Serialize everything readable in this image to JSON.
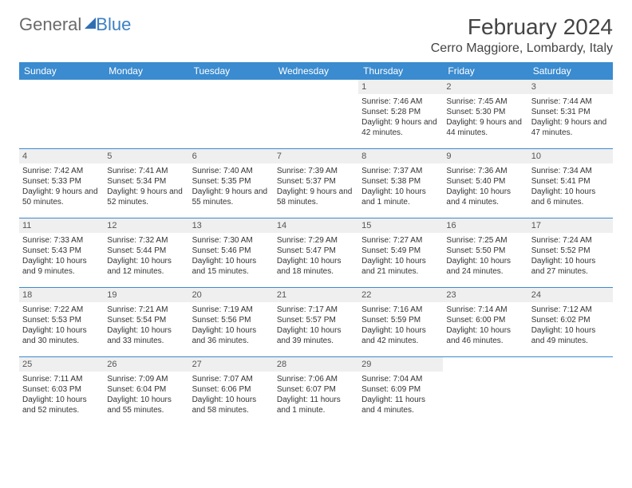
{
  "logo": {
    "part1": "General",
    "part2": "Blue"
  },
  "title": "February 2024",
  "location": "Cerro Maggiore, Lombardy, Italy",
  "colors": {
    "header_bg": "#3a8bcf",
    "header_text": "#ffffff",
    "daynum_bg": "#efefef",
    "rule": "#3a8bcf",
    "logo_blue": "#3a7fc4",
    "logo_gray": "#6a6a6a"
  },
  "daysOfWeek": [
    "Sunday",
    "Monday",
    "Tuesday",
    "Wednesday",
    "Thursday",
    "Friday",
    "Saturday"
  ],
  "weeks": [
    [
      null,
      null,
      null,
      null,
      {
        "n": "1",
        "sr": "7:46 AM",
        "ss": "5:28 PM",
        "dl": "9 hours and 42 minutes."
      },
      {
        "n": "2",
        "sr": "7:45 AM",
        "ss": "5:30 PM",
        "dl": "9 hours and 44 minutes."
      },
      {
        "n": "3",
        "sr": "7:44 AM",
        "ss": "5:31 PM",
        "dl": "9 hours and 47 minutes."
      }
    ],
    [
      {
        "n": "4",
        "sr": "7:42 AM",
        "ss": "5:33 PM",
        "dl": "9 hours and 50 minutes."
      },
      {
        "n": "5",
        "sr": "7:41 AM",
        "ss": "5:34 PM",
        "dl": "9 hours and 52 minutes."
      },
      {
        "n": "6",
        "sr": "7:40 AM",
        "ss": "5:35 PM",
        "dl": "9 hours and 55 minutes."
      },
      {
        "n": "7",
        "sr": "7:39 AM",
        "ss": "5:37 PM",
        "dl": "9 hours and 58 minutes."
      },
      {
        "n": "8",
        "sr": "7:37 AM",
        "ss": "5:38 PM",
        "dl": "10 hours and 1 minute."
      },
      {
        "n": "9",
        "sr": "7:36 AM",
        "ss": "5:40 PM",
        "dl": "10 hours and 4 minutes."
      },
      {
        "n": "10",
        "sr": "7:34 AM",
        "ss": "5:41 PM",
        "dl": "10 hours and 6 minutes."
      }
    ],
    [
      {
        "n": "11",
        "sr": "7:33 AM",
        "ss": "5:43 PM",
        "dl": "10 hours and 9 minutes."
      },
      {
        "n": "12",
        "sr": "7:32 AM",
        "ss": "5:44 PM",
        "dl": "10 hours and 12 minutes."
      },
      {
        "n": "13",
        "sr": "7:30 AM",
        "ss": "5:46 PM",
        "dl": "10 hours and 15 minutes."
      },
      {
        "n": "14",
        "sr": "7:29 AM",
        "ss": "5:47 PM",
        "dl": "10 hours and 18 minutes."
      },
      {
        "n": "15",
        "sr": "7:27 AM",
        "ss": "5:49 PM",
        "dl": "10 hours and 21 minutes."
      },
      {
        "n": "16",
        "sr": "7:25 AM",
        "ss": "5:50 PM",
        "dl": "10 hours and 24 minutes."
      },
      {
        "n": "17",
        "sr": "7:24 AM",
        "ss": "5:52 PM",
        "dl": "10 hours and 27 minutes."
      }
    ],
    [
      {
        "n": "18",
        "sr": "7:22 AM",
        "ss": "5:53 PM",
        "dl": "10 hours and 30 minutes."
      },
      {
        "n": "19",
        "sr": "7:21 AM",
        "ss": "5:54 PM",
        "dl": "10 hours and 33 minutes."
      },
      {
        "n": "20",
        "sr": "7:19 AM",
        "ss": "5:56 PM",
        "dl": "10 hours and 36 minutes."
      },
      {
        "n": "21",
        "sr": "7:17 AM",
        "ss": "5:57 PM",
        "dl": "10 hours and 39 minutes."
      },
      {
        "n": "22",
        "sr": "7:16 AM",
        "ss": "5:59 PM",
        "dl": "10 hours and 42 minutes."
      },
      {
        "n": "23",
        "sr": "7:14 AM",
        "ss": "6:00 PM",
        "dl": "10 hours and 46 minutes."
      },
      {
        "n": "24",
        "sr": "7:12 AM",
        "ss": "6:02 PM",
        "dl": "10 hours and 49 minutes."
      }
    ],
    [
      {
        "n": "25",
        "sr": "7:11 AM",
        "ss": "6:03 PM",
        "dl": "10 hours and 52 minutes."
      },
      {
        "n": "26",
        "sr": "7:09 AM",
        "ss": "6:04 PM",
        "dl": "10 hours and 55 minutes."
      },
      {
        "n": "27",
        "sr": "7:07 AM",
        "ss": "6:06 PM",
        "dl": "10 hours and 58 minutes."
      },
      {
        "n": "28",
        "sr": "7:06 AM",
        "ss": "6:07 PM",
        "dl": "11 hours and 1 minute."
      },
      {
        "n": "29",
        "sr": "7:04 AM",
        "ss": "6:09 PM",
        "dl": "11 hours and 4 minutes."
      },
      null,
      null
    ]
  ]
}
